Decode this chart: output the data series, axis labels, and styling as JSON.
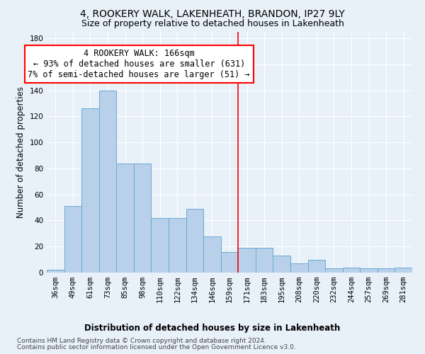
{
  "title": "4, ROOKERY WALK, LAKENHEATH, BRANDON, IP27 9LY",
  "subtitle": "Size of property relative to detached houses in Lakenheath",
  "xlabel": "Distribution of detached houses by size in Lakenheath",
  "ylabel": "Number of detached properties",
  "categories": [
    "36sqm",
    "49sqm",
    "61sqm",
    "73sqm",
    "85sqm",
    "98sqm",
    "110sqm",
    "122sqm",
    "134sqm",
    "146sqm",
    "159sqm",
    "171sqm",
    "183sqm",
    "195sqm",
    "208sqm",
    "220sqm",
    "232sqm",
    "244sqm",
    "257sqm",
    "269sqm",
    "281sqm"
  ],
  "values": [
    2,
    51,
    126,
    140,
    84,
    84,
    42,
    42,
    49,
    28,
    16,
    19,
    19,
    13,
    7,
    10,
    3,
    4,
    3,
    3,
    4
  ],
  "bar_color": "#b8d0ea",
  "bar_edge_color": "#6aaad4",
  "vline_color": "red",
  "ylim": [
    0,
    185
  ],
  "yticks": [
    0,
    20,
    40,
    60,
    80,
    100,
    120,
    140,
    160,
    180
  ],
  "annotation_line1": "4 ROOKERY WALK: 166sqm",
  "annotation_line2": "← 93% of detached houses are smaller (631)",
  "annotation_line3": "7% of semi-detached houses are larger (51) →",
  "annotation_box_color": "white",
  "annotation_box_edge_color": "red",
  "footer_line1": "Contains HM Land Registry data © Crown copyright and database right 2024.",
  "footer_line2": "Contains public sector information licensed under the Open Government Licence v3.0.",
  "background_color": "#e8f0f8",
  "title_fontsize": 10,
  "subtitle_fontsize": 9,
  "axis_label_fontsize": 8.5,
  "tick_fontsize": 7.5,
  "annotation_fontsize": 8.5,
  "footer_fontsize": 6.5
}
